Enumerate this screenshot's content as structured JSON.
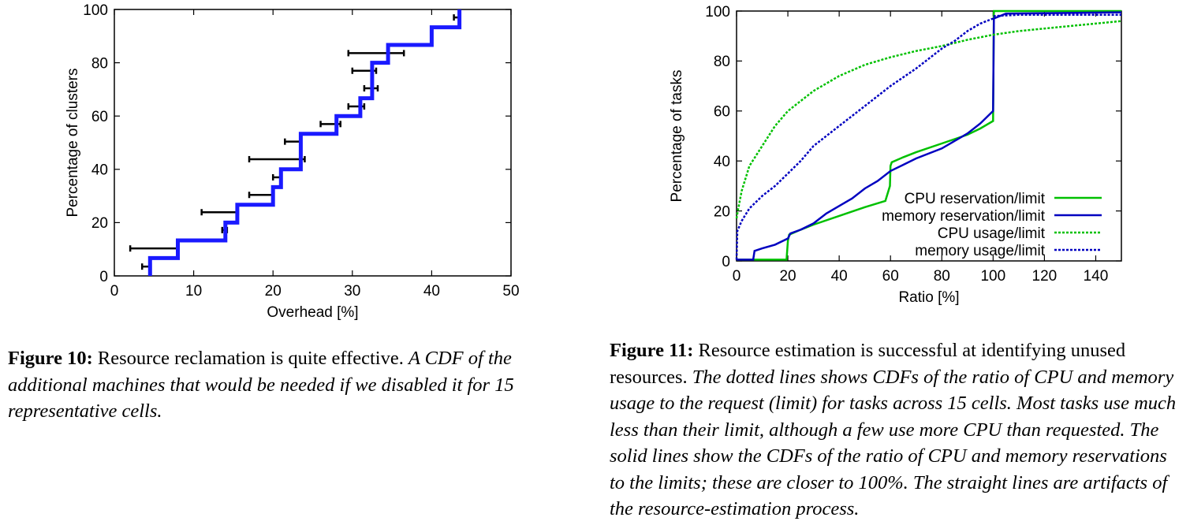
{
  "chart_data": [
    {
      "type": "line",
      "subtype": "step-cdf-with-errorbars",
      "xlabel": "Overhead [%]",
      "ylabel": "Percentage of clusters",
      "xlim": [
        0,
        50
      ],
      "ylim": [
        0,
        100
      ],
      "xticks": [
        0,
        10,
        20,
        30,
        40,
        50
      ],
      "yticks": [
        0,
        20,
        40,
        60,
        80,
        100
      ],
      "grid": false,
      "series": [
        {
          "color": "#1a1aff",
          "x": [
            4.5,
            4.5,
            8,
            8,
            14,
            14,
            15.5,
            15.5,
            20,
            20,
            21,
            21,
            23.5,
            23.5,
            28,
            28,
            31,
            31,
            32.5,
            32.5,
            34.5,
            34.5,
            40,
            40,
            43.5,
            43.5
          ],
          "y": [
            0,
            6.7,
            6.7,
            13.3,
            13.3,
            20,
            20,
            26.7,
            26.7,
            33.3,
            33.3,
            40,
            40,
            53.3,
            53.3,
            60,
            60,
            66.7,
            66.7,
            80,
            80,
            86.7,
            86.7,
            93.3,
            93.3,
            100
          ]
        }
      ],
      "errorbars": [
        {
          "xmin": 3.5,
          "xmax": 4.6,
          "y": 3.5
        },
        {
          "xmin": 2.0,
          "xmax": 8.0,
          "y": 10.3
        },
        {
          "xmin": 13.6,
          "xmax": 14.2,
          "y": 17.2
        },
        {
          "xmin": 11.0,
          "xmax": 15.6,
          "y": 23.9
        },
        {
          "xmin": 17.0,
          "xmax": 20.1,
          "y": 30.4
        },
        {
          "xmin": 20.0,
          "xmax": 21.0,
          "y": 37.0
        },
        {
          "xmin": 17.0,
          "xmax": 24.0,
          "y": 43.8
        },
        {
          "xmin": 21.5,
          "xmax": 23.5,
          "y": 50.4
        },
        {
          "xmin": 26.0,
          "xmax": 28.5,
          "y": 57.0
        },
        {
          "xmin": 29.5,
          "xmax": 31.5,
          "y": 63.6
        },
        {
          "xmin": 31.5,
          "xmax": 33.2,
          "y": 70.4
        },
        {
          "xmin": 30.0,
          "xmax": 33.0,
          "y": 77.0
        },
        {
          "xmin": 29.5,
          "xmax": 36.5,
          "y": 83.6
        },
        {
          "xmin": 42.8,
          "xmax": 43.6,
          "y": 97.0
        }
      ]
    },
    {
      "type": "line",
      "subtype": "cdf",
      "xlabel": "Ratio [%]",
      "ylabel": "Percentage of tasks",
      "xlim": [
        0,
        150
      ],
      "ylim": [
        0,
        100
      ],
      "xticks": [
        0,
        20,
        40,
        60,
        80,
        100,
        120,
        140
      ],
      "yticks": [
        0,
        20,
        40,
        60,
        80,
        100
      ],
      "grid": false,
      "legend": "bottom-right",
      "series": [
        {
          "name": "CPU reservation/limit",
          "color": "#00c000",
          "dash": "solid",
          "x": [
            0,
            19.5,
            20,
            20.5,
            25,
            30,
            40,
            50,
            58,
            59.8,
            60,
            60.5,
            65,
            70,
            80,
            90,
            95,
            100,
            100.3,
            110,
            150
          ],
          "y": [
            0.5,
            0.5,
            8,
            10.5,
            12.5,
            14.5,
            18,
            21.5,
            24,
            30,
            38,
            39.5,
            41.5,
            43.5,
            47,
            50.5,
            53,
            56,
            100,
            100,
            100
          ]
        },
        {
          "name": "memory reservation/limit",
          "color": "#0000c0",
          "dash": "solid",
          "x": [
            0,
            6.5,
            7,
            10,
            15,
            20,
            21,
            25,
            30,
            35,
            40,
            45,
            50,
            55,
            60,
            65,
            70,
            80,
            90,
            95,
            98,
            100,
            100.3,
            105,
            150
          ],
          "y": [
            0.5,
            0.5,
            4,
            5,
            6.5,
            9,
            11,
            12.5,
            15,
            19,
            22,
            25,
            29,
            32,
            36,
            38.5,
            41,
            45,
            51,
            55,
            58,
            60,
            97,
            99,
            99.5
          ]
        },
        {
          "name": "CPU usage/limit",
          "color": "#00c000",
          "dash": "dotted",
          "x": [
            0,
            0.5,
            2,
            5,
            10,
            15,
            20,
            30,
            40,
            50,
            60,
            70,
            80,
            90,
            100,
            110,
            120,
            130,
            140,
            150
          ],
          "y": [
            17,
            20,
            28,
            38,
            46,
            54,
            60,
            68,
            74,
            78.5,
            81.5,
            84,
            86,
            88.5,
            90.5,
            92,
            93,
            94,
            95,
            96
          ]
        },
        {
          "name": "memory usage/limit",
          "color": "#0000c0",
          "dash": "dotted",
          "x": [
            0,
            0.3,
            2,
            5,
            10,
            15,
            20,
            25,
            30,
            40,
            50,
            60,
            70,
            80,
            85,
            90,
            95,
            100,
            100.5,
            110,
            150
          ],
          "y": [
            0.5,
            12,
            16,
            21,
            26,
            30,
            35,
            40,
            46,
            54,
            62,
            70,
            77,
            85,
            88,
            92,
            95,
            97,
            98,
            98.5,
            98.5
          ]
        }
      ]
    }
  ],
  "captions": {
    "fig10": {
      "label": "Figure 10:",
      "lead": " Resource reclamation is quite effective. ",
      "body": "A CDF of the additional machines that would be needed if we disabled it for 15 representative cells."
    },
    "fig11": {
      "label": "Figure 11:",
      "lead": " Resource estimation is successful at identifying unused resources. ",
      "body": "The dotted lines shows CDFs of the ratio of CPU and memory usage to the request (limit) for tasks across 15 cells. Most tasks use much less than their limit, although a few use more CPU than requested. The solid lines show the CDFs of the ratio of CPU and memory reservations to the limits; these are closer to 100%. The straight lines are artifacts of the resource-estimation process."
    }
  }
}
